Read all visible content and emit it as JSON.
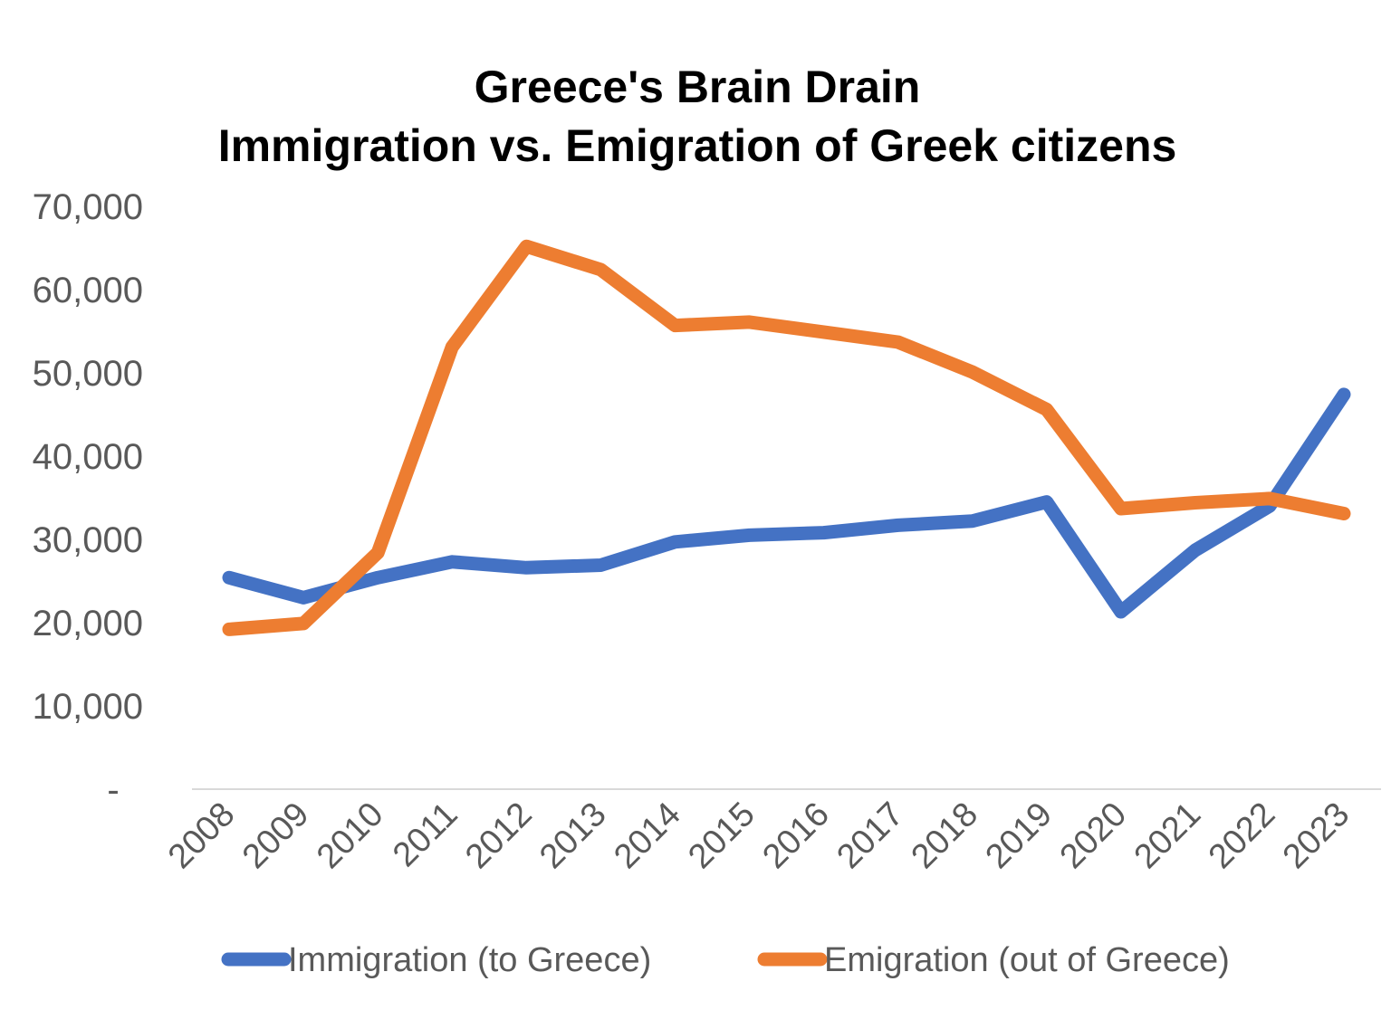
{
  "chart_data": {
    "type": "line",
    "title": "Greece's Brain Drain",
    "subtitle": "Immigration vs. Emigration of Greek citizens",
    "xlabel": "",
    "ylabel": "",
    "ylim": [
      0,
      70000
    ],
    "grid": false,
    "legend_position": "bottom",
    "y_ticks": [
      {
        "value": 0,
        "label": "-"
      },
      {
        "value": 10000,
        "label": "10,000"
      },
      {
        "value": 20000,
        "label": "20,000"
      },
      {
        "value": 30000,
        "label": "30,000"
      },
      {
        "value": 40000,
        "label": "40,000"
      },
      {
        "value": 50000,
        "label": "50,000"
      },
      {
        "value": 60000,
        "label": "60,000"
      },
      {
        "value": 70000,
        "label": "70,000"
      }
    ],
    "categories": [
      "2008",
      "2009",
      "2010",
      "2011",
      "2012",
      "2013",
      "2014",
      "2015",
      "2016",
      "2017",
      "2018",
      "2019",
      "2020",
      "2021",
      "2022",
      "2023"
    ],
    "series": [
      {
        "name": "Immigration (to Greece)",
        "color": "#4472C4",
        "values": [
          25400,
          23000,
          25400,
          27300,
          26600,
          26900,
          29700,
          30500,
          30800,
          31700,
          32200,
          34500,
          21300,
          28700,
          34000,
          47400
        ]
      },
      {
        "name": "Emigration (out of Greece)",
        "color": "#ED7D31",
        "values": [
          19200,
          19900,
          28400,
          53100,
          65200,
          62400,
          55700,
          56100,
          54900,
          53700,
          50100,
          45600,
          33700,
          34400,
          34900,
          33100
        ]
      }
    ]
  }
}
